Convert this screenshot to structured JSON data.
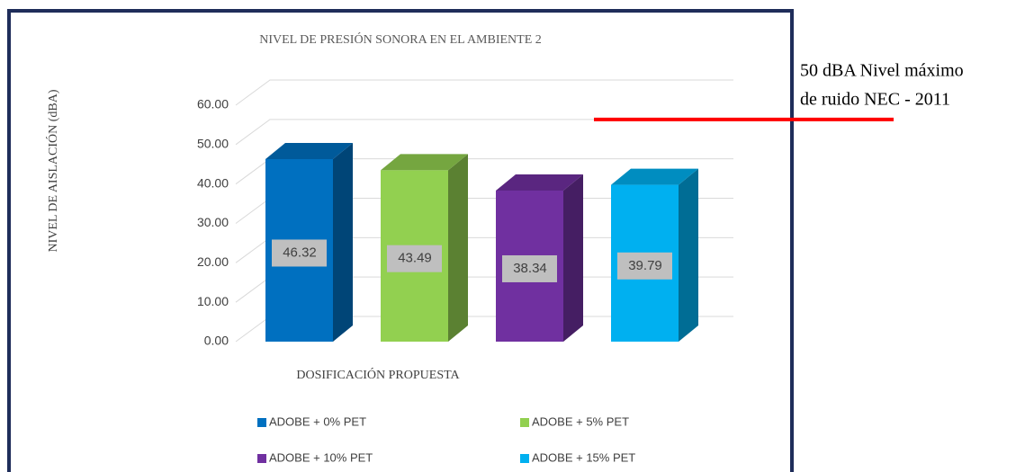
{
  "chart_data": {
    "type": "bar3d",
    "title": "NIVEL DE PRESIÓN SONORA EN EL AMBIENTE 2",
    "y_label": "NIVEL DE AISLACIÓN (dBA)",
    "x_label": "DOSIFICACIÓN PROPUESTA",
    "series": [
      {
        "name": "ADOBE + 0% PET",
        "color": "#0070c0",
        "values": [
          46.32
        ]
      },
      {
        "name": "ADOBE + 5% PET",
        "color": "#92d050",
        "values": [
          43.49
        ]
      },
      {
        "name": "ADOBE + 10% PET",
        "color": "#7030a0",
        "values": [
          38.34
        ]
      },
      {
        "name": "ADOBE + 15% PET",
        "color": "#00b0f0",
        "values": [
          39.79
        ]
      }
    ],
    "ylim": [
      0,
      60
    ],
    "yticks": [
      {
        "value": 0,
        "label": "0.00"
      },
      {
        "value": 10,
        "label": "10.00"
      },
      {
        "value": 20,
        "label": "20.00"
      },
      {
        "value": 30,
        "label": "30.00"
      },
      {
        "value": 40,
        "label": "40.00"
      },
      {
        "value": 50,
        "label": "50.00"
      },
      {
        "value": 60,
        "label": "60.00"
      }
    ],
    "grid": true,
    "reference_line": {
      "value": 50,
      "color": "#ff0000",
      "label": [
        "50 dBA Nivel máximo",
        "de ruido NEC - 2011"
      ]
    }
  }
}
